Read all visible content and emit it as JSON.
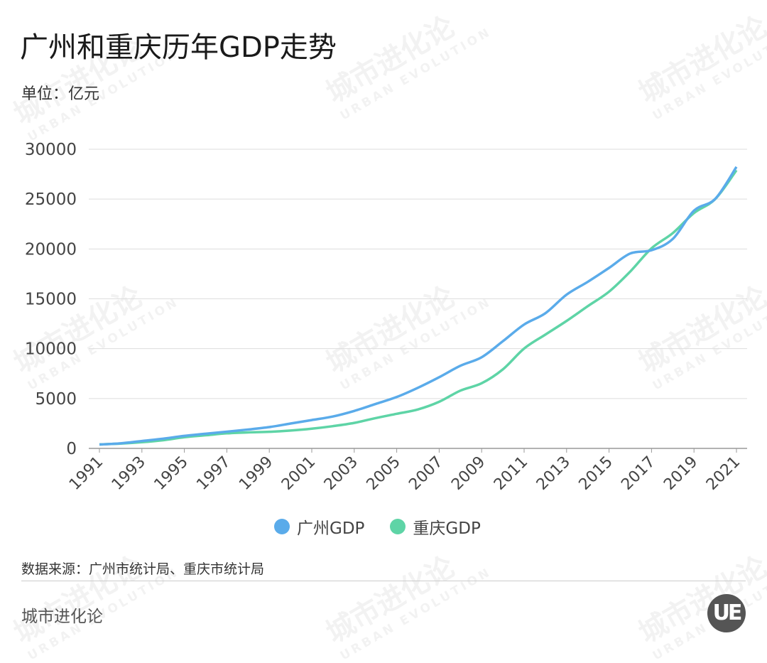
{
  "header": {
    "title": "广州和重庆历年GDP走势",
    "unit": "单位：亿元"
  },
  "footer": {
    "source": "数据来源：广州市统计局、重庆市统计局",
    "brand": "城市进化论",
    "logo_text": "UE"
  },
  "watermark": {
    "cn": "城市进化论",
    "en": "URBAN EVOLUTION"
  },
  "chart_data": {
    "type": "line",
    "title": "广州和重庆历年GDP走势",
    "ylabel": "亿元",
    "ylim": [
      0,
      30000
    ],
    "yticks": [
      0,
      5000,
      10000,
      15000,
      20000,
      25000,
      30000
    ],
    "xticks": [
      1991,
      1993,
      1995,
      1997,
      1999,
      2001,
      2003,
      2005,
      2007,
      2009,
      2011,
      2013,
      2015,
      2017,
      2019,
      2021
    ],
    "grid": true,
    "legend_position": "bottom",
    "x": [
      1991,
      1992,
      1993,
      1994,
      1995,
      1996,
      1997,
      1998,
      1999,
      2000,
      2001,
      2002,
      2003,
      2004,
      2005,
      2006,
      2007,
      2008,
      2009,
      2010,
      2011,
      2012,
      2013,
      2014,
      2015,
      2016,
      2017,
      2018,
      2019,
      2020,
      2021
    ],
    "series": [
      {
        "name": "广州GDP",
        "color": "#5aabea",
        "values": [
          386,
          510,
          744,
          976,
          1259,
          1468,
          1679,
          1893,
          2139,
          2492,
          2841,
          3203,
          3758,
          4450,
          5154,
          6081,
          7140,
          8287,
          9138,
          10748,
          12423,
          13551,
          15420,
          16707,
          18100,
          19547,
          19871,
          21002,
          23844,
          25019,
          28232
        ]
      },
      {
        "name": "重庆GDP",
        "color": "#5ed4a6",
        "values": [
          400,
          480,
          620,
          820,
          1120,
          1315,
          1510,
          1602,
          1663,
          1791,
          1977,
          2232,
          2556,
          3035,
          3468,
          3907,
          4676,
          5794,
          6530,
          7926,
          10011,
          11410,
          12783,
          14263,
          15717,
          17740,
          20066,
          21589,
          23606,
          25003,
          27894
        ]
      }
    ]
  }
}
